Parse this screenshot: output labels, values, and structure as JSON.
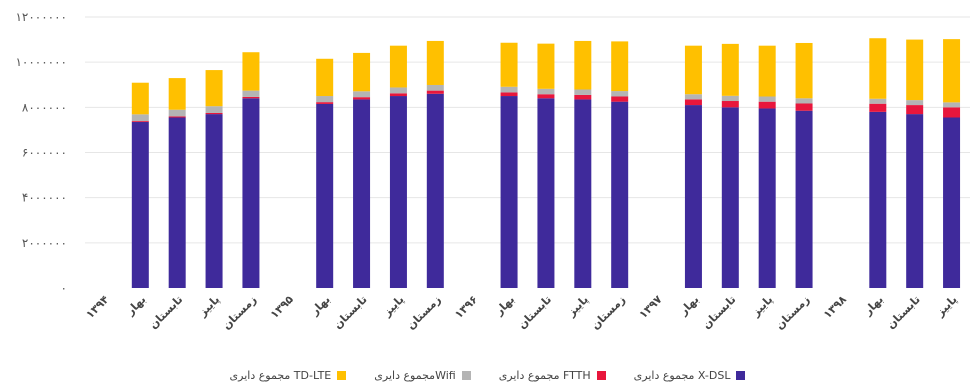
{
  "chart_data": {
    "type": "bar",
    "stacked": true,
    "ylim": [
      0,
      12000000
    ],
    "yticks": [
      "۰",
      "۲۰۰۰۰۰۰",
      "۴۰۰۰۰۰۰",
      "۶۰۰۰۰۰۰",
      "۸۰۰۰۰۰۰",
      "۱۰۰۰۰۰۰۰",
      "۱۲۰۰۰۰۰۰"
    ],
    "grid": true,
    "legend_position": "bottom",
    "categories": [
      "۱۳۹۴",
      "بهار",
      "تابستان",
      "پاییز",
      "زمستان",
      "۱۳۹۵",
      "بهار",
      "تابستان",
      "پاییز",
      "زمستان",
      "۱۳۹۶",
      "بهار",
      "تابستان",
      "پاییز",
      "زمستان",
      "۱۳۹۷",
      "بهار",
      "تابستان",
      "پاییز",
      "زمستان",
      "۱۳۹۸",
      "بهار",
      "تابستان",
      "پاییز"
    ],
    "series": [
      {
        "name": "مجموع دایری X-DSL",
        "color": "#3f2a9b",
        "values": [
          0,
          7350000,
          7550000,
          7700000,
          8400000,
          0,
          8150000,
          8350000,
          8500000,
          8600000,
          0,
          8500000,
          8400000,
          8350000,
          8250000,
          0,
          8100000,
          8000000,
          7950000,
          7850000,
          0,
          7800000,
          7700000,
          7550000
        ]
      },
      {
        "name": "مجموع دایری FTTH",
        "color": "#e8163c",
        "values": [
          0,
          40000,
          45000,
          50000,
          60000,
          0,
          80000,
          100000,
          120000,
          140000,
          0,
          160000,
          180000,
          200000,
          230000,
          0,
          250000,
          280000,
          300000,
          320000,
          0,
          360000,
          400000,
          450000
        ]
      },
      {
        "name": "مجموع دایریWifi",
        "color": "#b4b4b4",
        "values": [
          0,
          300000,
          300000,
          300000,
          280000,
          0,
          270000,
          260000,
          260000,
          250000,
          0,
          250000,
          240000,
          240000,
          240000,
          0,
          230000,
          230000,
          230000,
          230000,
          0,
          220000,
          220000,
          220000
        ]
      },
      {
        "name": "مجموع دایری TD-LTE",
        "color": "#ffc000",
        "values": [
          0,
          1400000,
          1400000,
          1600000,
          1700000,
          0,
          1650000,
          1700000,
          1850000,
          1950000,
          0,
          1950000,
          2000000,
          2150000,
          2200000,
          0,
          2150000,
          2300000,
          2250000,
          2450000,
          0,
          2680000,
          2680000,
          2800000
        ]
      }
    ]
  }
}
